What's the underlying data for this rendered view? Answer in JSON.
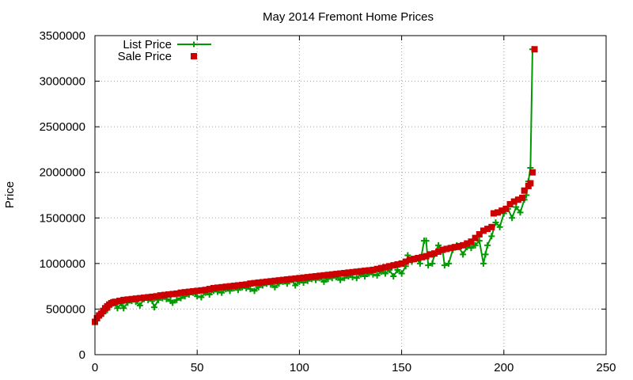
{
  "colors": {
    "list": "#009900",
    "sale": "#cc0000",
    "grid": "#a0a0a0",
    "frame": "#000000"
  },
  "chart_data": {
    "type": "line",
    "title": "May 2014 Fremont Home Prices",
    "xlabel": "",
    "ylabel": "Price",
    "xlim": [
      0,
      250
    ],
    "ylim": [
      0,
      3500000
    ],
    "xticks": [
      0,
      50,
      100,
      150,
      200,
      250
    ],
    "yticks": [
      0,
      500000,
      1000000,
      1500000,
      2000000,
      2500000,
      3000000,
      3500000
    ],
    "grid": true,
    "legend_position": "top-left",
    "series": [
      {
        "name": "List Price",
        "style": "lines+points",
        "marker": "plus",
        "color": "#009900",
        "points": [
          [
            0,
            360000
          ],
          [
            2,
            430000
          ],
          [
            4,
            450000
          ],
          [
            6,
            490000
          ],
          [
            8,
            550000
          ],
          [
            10,
            560000
          ],
          [
            11,
            510000
          ],
          [
            13,
            560000
          ],
          [
            14,
            510000
          ],
          [
            16,
            570000
          ],
          [
            18,
            590000
          ],
          [
            20,
            580000
          ],
          [
            22,
            540000
          ],
          [
            24,
            610000
          ],
          [
            26,
            600000
          ],
          [
            28,
            590000
          ],
          [
            29,
            520000
          ],
          [
            31,
            600000
          ],
          [
            33,
            620000
          ],
          [
            35,
            610000
          ],
          [
            37,
            590000
          ],
          [
            38,
            570000
          ],
          [
            40,
            600000
          ],
          [
            42,
            620000
          ],
          [
            44,
            640000
          ],
          [
            46,
            660000
          ],
          [
            48,
            680000
          ],
          [
            50,
            640000
          ],
          [
            52,
            630000
          ],
          [
            54,
            680000
          ],
          [
            56,
            660000
          ],
          [
            58,
            700000
          ],
          [
            60,
            690000
          ],
          [
            62,
            680000
          ],
          [
            64,
            720000
          ],
          [
            66,
            700000
          ],
          [
            68,
            730000
          ],
          [
            70,
            710000
          ],
          [
            72,
            740000
          ],
          [
            74,
            730000
          ],
          [
            76,
            720000
          ],
          [
            78,
            700000
          ],
          [
            80,
            740000
          ],
          [
            82,
            760000
          ],
          [
            84,
            780000
          ],
          [
            86,
            770000
          ],
          [
            88,
            740000
          ],
          [
            90,
            780000
          ],
          [
            92,
            800000
          ],
          [
            94,
            780000
          ],
          [
            96,
            820000
          ],
          [
            98,
            760000
          ],
          [
            100,
            800000
          ],
          [
            102,
            790000
          ],
          [
            104,
            810000
          ],
          [
            106,
            830000
          ],
          [
            108,
            820000
          ],
          [
            110,
            840000
          ],
          [
            112,
            800000
          ],
          [
            114,
            830000
          ],
          [
            116,
            840000
          ],
          [
            118,
            850000
          ],
          [
            120,
            820000
          ],
          [
            122,
            840000
          ],
          [
            124,
            860000
          ],
          [
            126,
            850000
          ],
          [
            128,
            840000
          ],
          [
            130,
            880000
          ],
          [
            132,
            860000
          ],
          [
            134,
            890000
          ],
          [
            136,
            880000
          ],
          [
            138,
            870000
          ],
          [
            140,
            910000
          ],
          [
            142,
            890000
          ],
          [
            144,
            930000
          ],
          [
            146,
            860000
          ],
          [
            148,
            930000
          ],
          [
            150,
            890000
          ],
          [
            152,
            970000
          ],
          [
            153,
            1090000
          ],
          [
            155,
            1020000
          ],
          [
            157,
            1060000
          ],
          [
            159,
            1000000
          ],
          [
            161,
            1250000
          ],
          [
            162,
            1250000
          ],
          [
            163,
            980000
          ],
          [
            165,
            1000000
          ],
          [
            166,
            1100000
          ],
          [
            168,
            1200000
          ],
          [
            170,
            1150000
          ],
          [
            171,
            980000
          ],
          [
            173,
            1000000
          ],
          [
            175,
            1150000
          ],
          [
            177,
            1200000
          ],
          [
            178,
            1180000
          ],
          [
            180,
            1100000
          ],
          [
            182,
            1180000
          ],
          [
            184,
            1170000
          ],
          [
            186,
            1200000
          ],
          [
            188,
            1250000
          ],
          [
            190,
            1000000
          ],
          [
            191,
            1100000
          ],
          [
            192,
            1200000
          ],
          [
            194,
            1300000
          ],
          [
            196,
            1450000
          ],
          [
            198,
            1400000
          ],
          [
            200,
            1550000
          ],
          [
            202,
            1600000
          ],
          [
            204,
            1500000
          ],
          [
            206,
            1620000
          ],
          [
            208,
            1560000
          ],
          [
            210,
            1700000
          ],
          [
            211,
            1750000
          ],
          [
            212,
            1900000
          ],
          [
            213,
            2050000
          ],
          [
            214,
            3350000
          ]
        ]
      },
      {
        "name": "Sale Price",
        "style": "points",
        "marker": "square",
        "color": "#cc0000",
        "points": [
          [
            0,
            360000
          ],
          [
            1,
            400000
          ],
          [
            2,
            430000
          ],
          [
            3,
            450000
          ],
          [
            4,
            480000
          ],
          [
            5,
            510000
          ],
          [
            6,
            530000
          ],
          [
            7,
            550000
          ],
          [
            8,
            565000
          ],
          [
            9,
            575000
          ],
          [
            10,
            580000
          ],
          [
            12,
            590000
          ],
          [
            14,
            600000
          ],
          [
            16,
            605000
          ],
          [
            18,
            610000
          ],
          [
            20,
            615000
          ],
          [
            22,
            620000
          ],
          [
            24,
            625000
          ],
          [
            26,
            630000
          ],
          [
            28,
            635000
          ],
          [
            30,
            640000
          ],
          [
            32,
            650000
          ],
          [
            34,
            655000
          ],
          [
            36,
            660000
          ],
          [
            38,
            665000
          ],
          [
            40,
            670000
          ],
          [
            42,
            680000
          ],
          [
            44,
            685000
          ],
          [
            46,
            690000
          ],
          [
            48,
            695000
          ],
          [
            50,
            700000
          ],
          [
            52,
            705000
          ],
          [
            54,
            710000
          ],
          [
            56,
            720000
          ],
          [
            58,
            730000
          ],
          [
            60,
            735000
          ],
          [
            62,
            740000
          ],
          [
            64,
            745000
          ],
          [
            66,
            750000
          ],
          [
            68,
            755000
          ],
          [
            70,
            760000
          ],
          [
            72,
            765000
          ],
          [
            74,
            770000
          ],
          [
            76,
            780000
          ],
          [
            78,
            785000
          ],
          [
            80,
            790000
          ],
          [
            82,
            795000
          ],
          [
            84,
            800000
          ],
          [
            86,
            805000
          ],
          [
            88,
            810000
          ],
          [
            90,
            815000
          ],
          [
            92,
            820000
          ],
          [
            94,
            825000
          ],
          [
            96,
            830000
          ],
          [
            98,
            835000
          ],
          [
            100,
            840000
          ],
          [
            102,
            845000
          ],
          [
            104,
            850000
          ],
          [
            106,
            855000
          ],
          [
            108,
            860000
          ],
          [
            110,
            865000
          ],
          [
            112,
            870000
          ],
          [
            114,
            875000
          ],
          [
            116,
            880000
          ],
          [
            118,
            885000
          ],
          [
            120,
            890000
          ],
          [
            122,
            895000
          ],
          [
            124,
            900000
          ],
          [
            126,
            905000
          ],
          [
            128,
            910000
          ],
          [
            130,
            915000
          ],
          [
            132,
            920000
          ],
          [
            134,
            925000
          ],
          [
            136,
            930000
          ],
          [
            138,
            940000
          ],
          [
            140,
            950000
          ],
          [
            142,
            960000
          ],
          [
            144,
            970000
          ],
          [
            146,
            980000
          ],
          [
            148,
            990000
          ],
          [
            150,
            1000000
          ],
          [
            152,
            1020000
          ],
          [
            154,
            1040000
          ],
          [
            156,
            1050000
          ],
          [
            158,
            1060000
          ],
          [
            160,
            1070000
          ],
          [
            162,
            1080000
          ],
          [
            164,
            1100000
          ],
          [
            166,
            1110000
          ],
          [
            168,
            1130000
          ],
          [
            170,
            1150000
          ],
          [
            172,
            1160000
          ],
          [
            174,
            1170000
          ],
          [
            176,
            1180000
          ],
          [
            178,
            1190000
          ],
          [
            180,
            1200000
          ],
          [
            182,
            1220000
          ],
          [
            184,
            1240000
          ],
          [
            186,
            1280000
          ],
          [
            188,
            1320000
          ],
          [
            190,
            1360000
          ],
          [
            192,
            1380000
          ],
          [
            194,
            1400000
          ],
          [
            195,
            1550000
          ],
          [
            197,
            1560000
          ],
          [
            199,
            1580000
          ],
          [
            201,
            1600000
          ],
          [
            203,
            1650000
          ],
          [
            205,
            1680000
          ],
          [
            207,
            1700000
          ],
          [
            209,
            1720000
          ],
          [
            210,
            1800000
          ],
          [
            212,
            1850000
          ],
          [
            213,
            1880000
          ],
          [
            214,
            2000000
          ],
          [
            215,
            3350000
          ]
        ]
      }
    ]
  }
}
